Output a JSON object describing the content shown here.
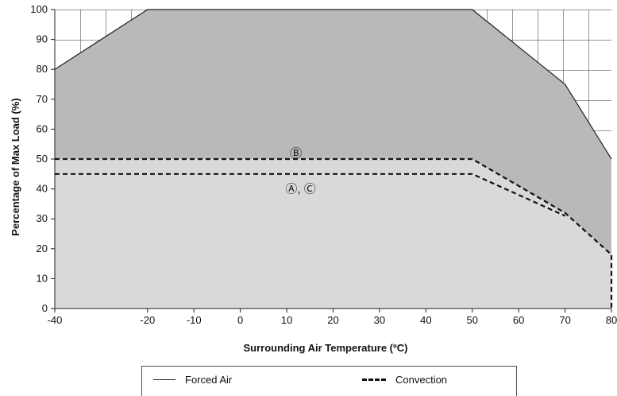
{
  "chart_data": {
    "type": "area",
    "xlabel": "Surrounding Air Temperature (ºC)",
    "ylabel": "Percentage of Max Load (%)",
    "xlim": [
      -40,
      80
    ],
    "ylim": [
      0,
      100
    ],
    "x_ticks": [
      "-40",
      "-20",
      "-10",
      "0",
      "10",
      "20",
      "30",
      "40",
      "50",
      "60",
      "70",
      "80"
    ],
    "x_tick_values": [
      -40,
      -20,
      -10,
      0,
      10,
      20,
      30,
      40,
      50,
      60,
      70,
      80
    ],
    "y_ticks": [
      "0",
      "10",
      "20",
      "30",
      "40",
      "50",
      "60",
      "70",
      "80",
      "90",
      "100"
    ],
    "y_tick_values": [
      0,
      10,
      20,
      30,
      40,
      50,
      60,
      70,
      80,
      90,
      100
    ],
    "series": [
      {
        "name": "Forced Air",
        "style": "solid",
        "x": [
          -40,
          -20,
          50,
          70,
          80
        ],
        "y": [
          80,
          100,
          100,
          75,
          50
        ]
      },
      {
        "label": "B",
        "style": "dashed",
        "x": [
          -40,
          50,
          70,
          80,
          80
        ],
        "y": [
          50,
          50,
          32,
          18,
          0
        ]
      },
      {
        "label": "A, C",
        "style": "dashed",
        "x": [
          -40,
          50,
          70
        ],
        "y": [
          45,
          45,
          31
        ]
      }
    ],
    "annotations": [
      {
        "text": "Ⓑ",
        "x": 12,
        "y": 52
      },
      {
        "text": "Ⓐ, Ⓒ",
        "x": 13,
        "y": 40
      }
    ],
    "legend": {
      "placement": "bottom",
      "items": [
        {
          "label": "Forced Air",
          "style": "solid"
        },
        {
          "label": "Convection",
          "style": "dashed"
        }
      ]
    },
    "colors": {
      "dark_region": "#b9b9b9",
      "light_region": "#d9d9d9",
      "line": "#222222"
    }
  }
}
